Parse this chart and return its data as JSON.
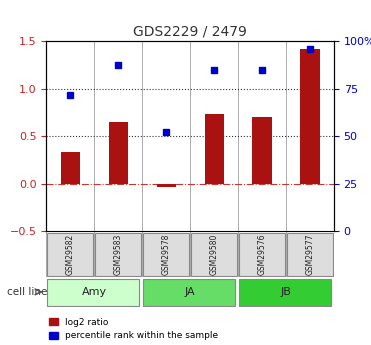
{
  "title": "GDS2229 / 2479",
  "categories": [
    "GSM29582",
    "GSM29583",
    "GSM29578",
    "GSM29580",
    "GSM29576",
    "GSM29577"
  ],
  "log2_ratio": [
    0.33,
    0.65,
    -0.03,
    0.73,
    0.7,
    1.42
  ],
  "percentile_rank": [
    0.93,
    1.25,
    0.55,
    1.2,
    1.2,
    1.42
  ],
  "bar_color": "#aa1111",
  "dot_color": "#0000cc",
  "ylim_left": [
    -0.5,
    1.5
  ],
  "ylim_right": [
    0,
    100
  ],
  "yticks_left": [
    -0.5,
    0.0,
    0.5,
    1.0,
    1.5
  ],
  "yticks_right": [
    0,
    25,
    50,
    75,
    100
  ],
  "ytick_labels_right": [
    "0",
    "25",
    "50",
    "75",
    "100%"
  ],
  "hlines": [
    0.0,
    0.5,
    1.0
  ],
  "hline_styles": [
    "dashdot",
    "dotted",
    "dotted"
  ],
  "hline_colors": [
    "#cc3333",
    "#333333",
    "#333333"
  ],
  "cell_line_groups": [
    {
      "label": "Amy",
      "start": 0,
      "end": 1,
      "color": "#ccffcc"
    },
    {
      "label": "JA",
      "start": 2,
      "end": 3,
      "color": "#66ee66"
    },
    {
      "label": "JB",
      "start": 4,
      "end": 5,
      "color": "#44dd44"
    }
  ],
  "cell_line_label": "cell line",
  "legend_items": [
    {
      "label": "log2 ratio",
      "color": "#aa1111"
    },
    {
      "label": "percentile rank within the sample",
      "color": "#0000cc"
    }
  ],
  "bg_color": "#ffffff",
  "tick_label_color_left": "#cc2222",
  "tick_label_color_right": "#0000cc"
}
